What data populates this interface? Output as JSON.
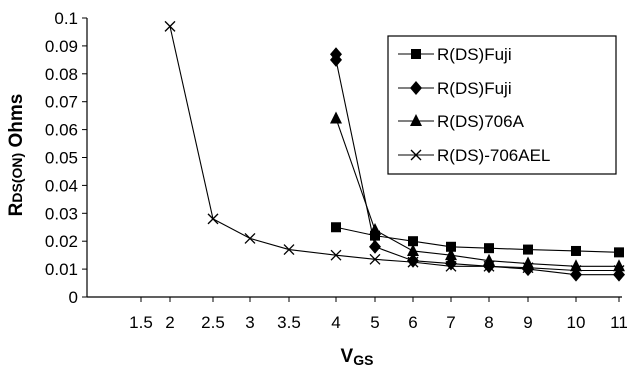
{
  "chart_data": {
    "type": "line",
    "title": "",
    "ylabel": "RDS(ON) Ohms",
    "ylabel_parts": {
      "main": "R",
      "sub": "DS(ON)",
      "tail": " Ohms"
    },
    "xlabel": "VGS",
    "xlabel_parts": {
      "main": "V",
      "sub": "GS"
    },
    "x_categories": [
      "1.5",
      "2",
      "2.5",
      "3",
      "3.5",
      "4",
      "5",
      "6",
      "7",
      "8",
      "9",
      "10",
      "11"
    ],
    "y_ticks": [
      "0",
      "0.01",
      "0.02",
      "0.03",
      "0.04",
      "0.05",
      "0.06",
      "0.07",
      "0.08",
      "0.09",
      "0.1"
    ],
    "ylim": [
      0,
      0.1
    ],
    "grid": false,
    "legend_position": "top-right",
    "series": [
      {
        "name": "R(DS)Fuji",
        "marker": "square",
        "points": [
          {
            "x": "4",
            "y": 0.025
          },
          {
            "x": "5",
            "y": 0.022
          },
          {
            "x": "6",
            "y": 0.02
          },
          {
            "x": "7",
            "y": 0.018
          },
          {
            "x": "8",
            "y": 0.0175
          },
          {
            "x": "9",
            "y": 0.017
          },
          {
            "x": "10",
            "y": 0.0165
          },
          {
            "x": "11",
            "y": 0.016
          }
        ]
      },
      {
        "name": "R(DS)Fuji",
        "marker": "diamond",
        "points": [
          {
            "x": "4",
            "y": 0.087
          },
          {
            "x": "4",
            "y": 0.085
          },
          {
            "x": "5",
            "y": 0.018
          },
          {
            "x": "6",
            "y": 0.013
          },
          {
            "x": "7",
            "y": 0.012
          },
          {
            "x": "8",
            "y": 0.011
          },
          {
            "x": "9",
            "y": 0.01
          },
          {
            "x": "10",
            "y": 0.008
          },
          {
            "x": "11",
            "y": 0.008
          }
        ]
      },
      {
        "name": "R(DS)706A",
        "marker": "triangle",
        "points": [
          {
            "x": "4",
            "y": 0.064
          },
          {
            "x": "5",
            "y": 0.024
          },
          {
            "x": "6",
            "y": 0.0165
          },
          {
            "x": "7",
            "y": 0.015
          },
          {
            "x": "8",
            "y": 0.013
          },
          {
            "x": "9",
            "y": 0.012
          },
          {
            "x": "10",
            "y": 0.011
          },
          {
            "x": "11",
            "y": 0.011
          }
        ]
      },
      {
        "name": "R(DS)-706AEL",
        "marker": "x",
        "points": [
          {
            "x": "2",
            "y": 0.097
          },
          {
            "x": "2.5",
            "y": 0.028
          },
          {
            "x": "3",
            "y": 0.021
          },
          {
            "x": "3.5",
            "y": 0.017
          },
          {
            "x": "4",
            "y": 0.015
          },
          {
            "x": "5",
            "y": 0.0135
          },
          {
            "x": "6",
            "y": 0.0125
          },
          {
            "x": "7",
            "y": 0.011
          },
          {
            "x": "8",
            "y": 0.011
          },
          {
            "x": "9",
            "y": 0.0105
          },
          {
            "x": "10",
            "y": 0.0095
          },
          {
            "x": "11",
            "y": 0.0095
          }
        ]
      }
    ]
  },
  "colors": {
    "line": "#000000",
    "background": "#ffffff"
  }
}
